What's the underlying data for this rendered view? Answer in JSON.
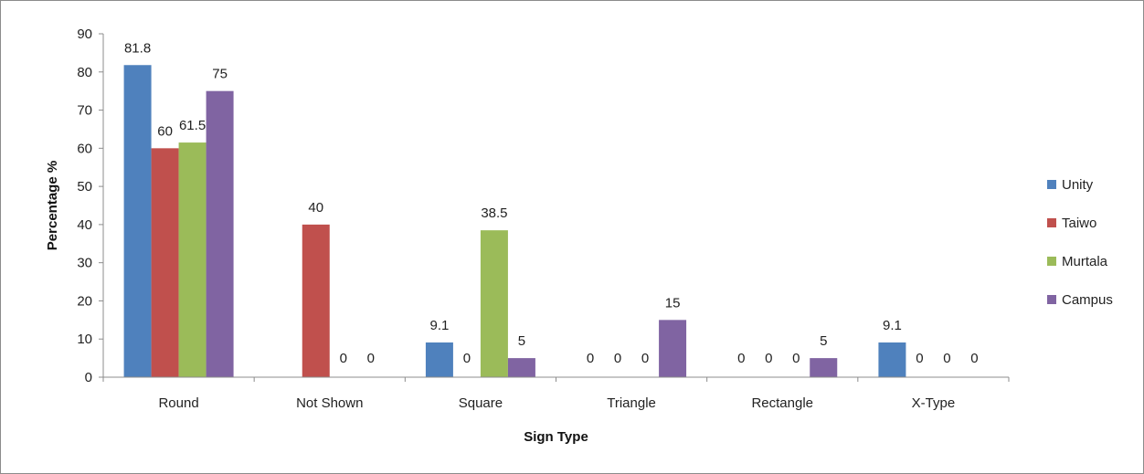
{
  "chart_data": {
    "type": "bar",
    "title": "",
    "xlabel": "Sign Type",
    "ylabel": "Percentage %",
    "ylim": [
      0,
      90
    ],
    "ytick_step": 10,
    "grid": false,
    "legend_position": "right",
    "categories": [
      "Round",
      "Not Shown",
      "Square",
      "Triangle",
      "Rectangle",
      "X-Type"
    ],
    "series": [
      {
        "name": "Unity",
        "color": "#4F81BD",
        "values": [
          81.8,
          0,
          9.1,
          0,
          0,
          9.1
        ]
      },
      {
        "name": "Taiwo",
        "color": "#C0504D",
        "values": [
          60,
          40,
          0,
          0,
          0,
          0
        ]
      },
      {
        "name": "Murtala",
        "color": "#9BBB59",
        "values": [
          61.5,
          0,
          38.5,
          0,
          0,
          0
        ]
      },
      {
        "name": "Campus",
        "color": "#8064A2",
        "values": [
          75,
          0,
          5,
          15,
          5,
          0
        ]
      }
    ],
    "data_labels": [
      [
        "81.8",
        "60",
        "61.5",
        "75"
      ],
      [
        "",
        "40",
        "0",
        "0"
      ],
      [
        "9.1",
        "0",
        "38.5",
        "5"
      ],
      [
        "0",
        "0",
        "0",
        "15"
      ],
      [
        "0",
        "0",
        "0",
        "5"
      ],
      [
        "9.1",
        "0",
        "0",
        "0"
      ]
    ]
  }
}
